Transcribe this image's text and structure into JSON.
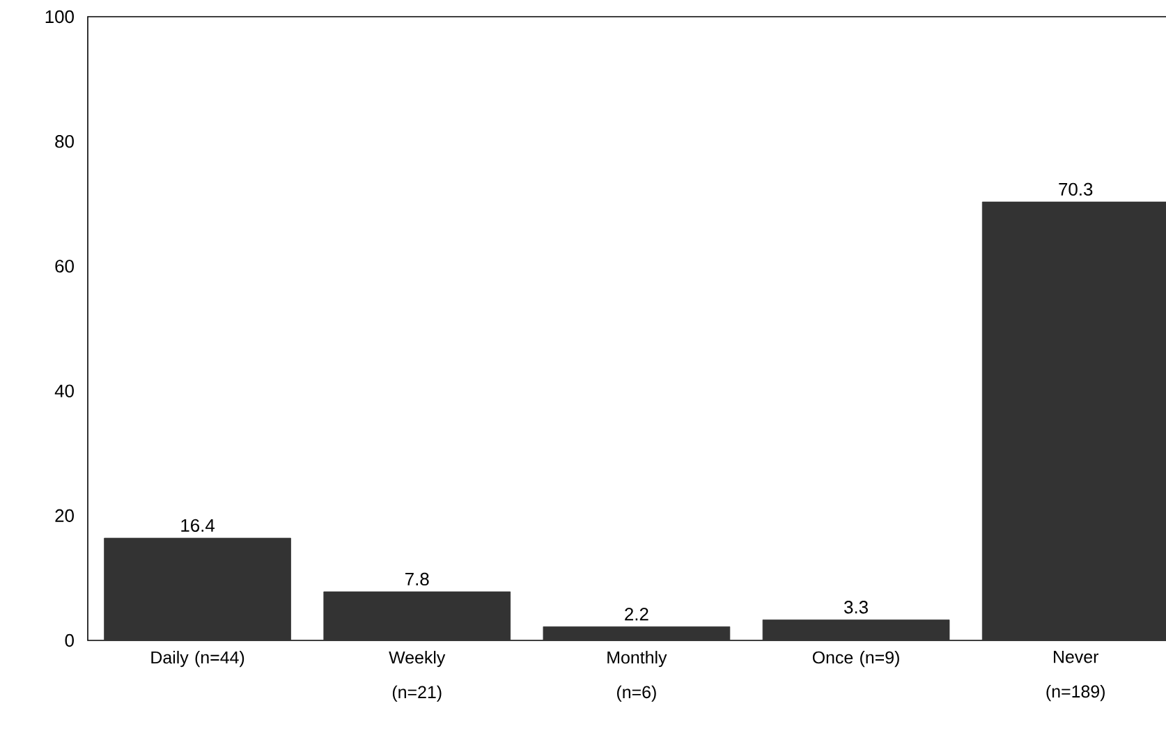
{
  "chart_data": {
    "type": "bar",
    "categories": [
      "Daily (n=44)",
      "Weekly (n=21)",
      "Monthly (n=6)",
      "Once (n=9)",
      "Never (n=189)"
    ],
    "values": [
      16.4,
      7.8,
      2.2,
      3.3,
      70.3
    ],
    "color": "#333333",
    "ylim": [
      0,
      100
    ],
    "yticks": [
      0,
      20,
      40,
      60,
      80,
      100
    ],
    "data_labels": true
  }
}
